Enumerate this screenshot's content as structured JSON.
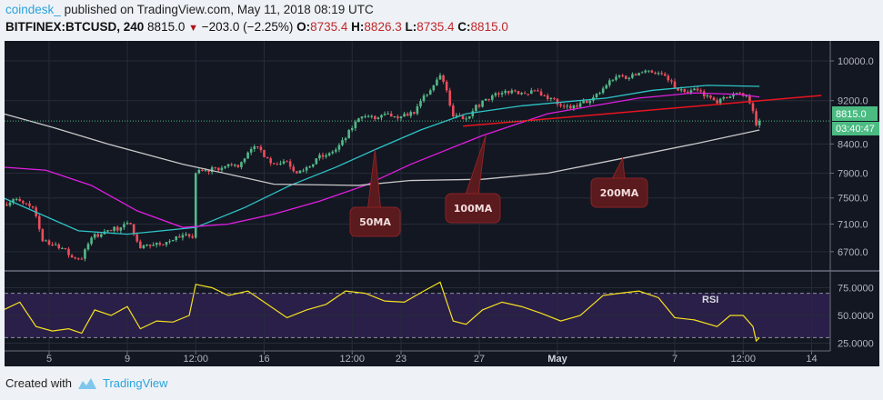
{
  "header": {
    "user": "coindesk_",
    "published": "published on TradingView.com, May 11, 2018 08:19 UTC",
    "symbol": "BITFINEX:BTCUSD, 240",
    "last": "8815.0",
    "change": "−203.0 (−2.25%)",
    "o_label": "O:",
    "o": "8735.4",
    "h_label": "H:",
    "h": "8826.3",
    "l_label": "L:",
    "l": "8735.4",
    "c_label": "C:",
    "c": "8815.0"
  },
  "footer": {
    "created_with": "Created with",
    "brand": "TradingView"
  },
  "colors": {
    "background": "#131722",
    "up": "#53b987",
    "down": "#eb4d5c",
    "ma50": "#2ec4c6",
    "ma100": "#e01ee0",
    "ma200": "#c8c8c8",
    "trendline": "#e8141e",
    "rsi": "#f5e020",
    "rsi_band": "#2a1f48",
    "price_label": "#4bbb82"
  },
  "chart_data": {
    "type": "candlestick",
    "interval": "240",
    "y_scale": "log",
    "price_ticks": [
      "10000.0",
      "9200.0",
      "8400.0",
      "7900.0",
      "7500.0",
      "7100.0",
      "6700.0"
    ],
    "x_ticks": [
      {
        "date": "2018-04-05T00:00",
        "label": "5"
      },
      {
        "date": "2018-04-09T00:00",
        "label": "9"
      },
      {
        "date": "2018-04-12T12:00",
        "label": "12:00"
      },
      {
        "date": "2018-04-16T00:00",
        "label": "16"
      },
      {
        "date": "2018-04-20T12:00",
        "label": "12:00"
      },
      {
        "date": "2018-04-23T00:00",
        "label": "23"
      },
      {
        "date": "2018-04-27T00:00",
        "label": "27"
      },
      {
        "date": "2018-05-01T00:00",
        "label": "May"
      },
      {
        "date": "2018-05-07T00:00",
        "label": "7"
      },
      {
        "date": "2018-05-10T12:00",
        "label": "12:00"
      },
      {
        "date": "2018-05-14T00:00",
        "label": "14"
      }
    ],
    "last_price_label": "8815.0",
    "countdown": "03:40:47",
    "closes": [
      [
        "2018-04-02T16:00",
        7400
      ],
      [
        "2018-04-03T04:00",
        7480
      ],
      [
        "2018-04-03T16:00",
        7420
      ],
      [
        "2018-04-04T04:00",
        7350
      ],
      [
        "2018-04-04T16:00",
        6850
      ],
      [
        "2018-04-05T04:00",
        6800
      ],
      [
        "2018-04-05T16:00",
        6750
      ],
      [
        "2018-04-06T04:00",
        6620
      ],
      [
        "2018-04-06T16:00",
        6600
      ],
      [
        "2018-04-07T04:00",
        6900
      ],
      [
        "2018-04-07T16:00",
        6950
      ],
      [
        "2018-04-08T04:00",
        7000
      ],
      [
        "2018-04-08T16:00",
        7050
      ],
      [
        "2018-04-09T04:00",
        7100
      ],
      [
        "2018-04-09T16:00",
        6750
      ],
      [
        "2018-04-10T04:00",
        6780
      ],
      [
        "2018-04-10T16:00",
        6800
      ],
      [
        "2018-04-11T04:00",
        6850
      ],
      [
        "2018-04-11T16:00",
        6900
      ],
      [
        "2018-04-12T04:00",
        6920
      ],
      [
        "2018-04-12T08:00",
        6900
      ],
      [
        "2018-04-12T12:00",
        7900
      ],
      [
        "2018-04-13T00:00",
        7950
      ],
      [
        "2018-04-13T16:00",
        7950
      ],
      [
        "2018-04-14T04:00",
        8050
      ],
      [
        "2018-04-14T16:00",
        8000
      ],
      [
        "2018-04-15T04:00",
        8250
      ],
      [
        "2018-04-15T16:00",
        8350
      ],
      [
        "2018-04-16T04:00",
        8150
      ],
      [
        "2018-04-16T16:00",
        8050
      ],
      [
        "2018-04-17T04:00",
        8100
      ],
      [
        "2018-04-17T16:00",
        7900
      ],
      [
        "2018-04-18T04:00",
        8000
      ],
      [
        "2018-04-18T16:00",
        8150
      ],
      [
        "2018-04-19T04:00",
        8200
      ],
      [
        "2018-04-19T16:00",
        8300
      ],
      [
        "2018-04-20T04:00",
        8500
      ],
      [
        "2018-04-20T16:00",
        8800
      ],
      [
        "2018-04-21T04:00",
        8900
      ],
      [
        "2018-04-21T16:00",
        8850
      ],
      [
        "2018-04-22T04:00",
        8950
      ],
      [
        "2018-04-22T16:00",
        8900
      ],
      [
        "2018-04-23T04:00",
        8950
      ],
      [
        "2018-04-23T16:00",
        8950
      ],
      [
        "2018-04-24T04:00",
        9300
      ],
      [
        "2018-04-24T16:00",
        9500
      ],
      [
        "2018-04-25T00:00",
        9700
      ],
      [
        "2018-04-25T08:00",
        9400
      ],
      [
        "2018-04-25T16:00",
        8900
      ],
      [
        "2018-04-26T04:00",
        8850
      ],
      [
        "2018-04-26T16:00",
        9000
      ],
      [
        "2018-04-27T04:00",
        9200
      ],
      [
        "2018-04-27T16:00",
        9300
      ],
      [
        "2018-04-28T04:00",
        9350
      ],
      [
        "2018-04-28T16:00",
        9400
      ],
      [
        "2018-04-29T04:00",
        9350
      ],
      [
        "2018-04-29T16:00",
        9400
      ],
      [
        "2018-04-30T04:00",
        9300
      ],
      [
        "2018-04-30T16:00",
        9250
      ],
      [
        "2018-05-01T04:00",
        9100
      ],
      [
        "2018-05-01T16:00",
        9050
      ],
      [
        "2018-05-02T04:00",
        9150
      ],
      [
        "2018-05-02T16:00",
        9200
      ],
      [
        "2018-05-03T04:00",
        9350
      ],
      [
        "2018-05-03T16:00",
        9600
      ],
      [
        "2018-05-04T04:00",
        9700
      ],
      [
        "2018-05-04T16:00",
        9650
      ],
      [
        "2018-05-05T04:00",
        9750
      ],
      [
        "2018-05-05T16:00",
        9800
      ],
      [
        "2018-05-06T04:00",
        9750
      ],
      [
        "2018-05-06T16:00",
        9600
      ],
      [
        "2018-05-07T04:00",
        9400
      ],
      [
        "2018-05-07T16:00",
        9350
      ],
      [
        "2018-05-08T04:00",
        9400
      ],
      [
        "2018-05-08T16:00",
        9300
      ],
      [
        "2018-05-09T04:00",
        9150
      ],
      [
        "2018-05-09T16:00",
        9250
      ],
      [
        "2018-05-10T04:00",
        9350
      ],
      [
        "2018-05-10T16:00",
        9300
      ],
      [
        "2018-05-11T00:00",
        9000
      ],
      [
        "2018-05-11T04:00",
        8735.4
      ],
      [
        "2018-05-11T08:00",
        8815
      ]
    ],
    "moving_averages": [
      {
        "name": "50MA",
        "color_key": "ma50",
        "points": [
          [
            "2018-04-02T16:00",
            7500
          ],
          [
            "2018-04-06T12:00",
            7000
          ],
          [
            "2018-04-09T00:00",
            6950
          ],
          [
            "2018-04-12T12:00",
            7050
          ],
          [
            "2018-04-15T00:00",
            7350
          ],
          [
            "2018-04-17T08:00",
            7700
          ],
          [
            "2018-04-19T16:00",
            8000
          ],
          [
            "2018-04-21T16:00",
            8300
          ],
          [
            "2018-04-24T00:00",
            8650
          ],
          [
            "2018-04-26T08:00",
            8950
          ],
          [
            "2018-04-29T04:00",
            9100
          ],
          [
            "2018-05-03T12:00",
            9250
          ],
          [
            "2018-05-05T20:00",
            9400
          ],
          [
            "2018-05-08T16:00",
            9500
          ],
          [
            "2018-05-11T08:00",
            9480
          ]
        ]
      },
      {
        "name": "100MA",
        "color_key": "ma100",
        "points": [
          [
            "2018-04-02T16:00",
            8000
          ],
          [
            "2018-04-04T20:00",
            7950
          ],
          [
            "2018-04-07T04:00",
            7700
          ],
          [
            "2018-04-09T12:00",
            7300
          ],
          [
            "2018-04-11T20:00",
            7050
          ],
          [
            "2018-04-14T04:00",
            7100
          ],
          [
            "2018-04-16T12:00",
            7250
          ],
          [
            "2018-04-18T20:00",
            7450
          ],
          [
            "2018-04-21T04:00",
            7700
          ],
          [
            "2018-04-23T12:00",
            8050
          ],
          [
            "2018-04-27T04:00",
            8550
          ],
          [
            "2018-04-30T12:00",
            8950
          ],
          [
            "2018-05-02T20:00",
            9100
          ],
          [
            "2018-05-05T04:00",
            9250
          ],
          [
            "2018-05-08T00:00",
            9350
          ],
          [
            "2018-05-10T08:00",
            9320
          ],
          [
            "2018-05-11T08:00",
            9270
          ]
        ]
      },
      {
        "name": "200MA",
        "color_key": "ma200",
        "points": [
          [
            "2018-04-02T16:00",
            8950
          ],
          [
            "2018-04-05T04:00",
            8700
          ],
          [
            "2018-04-08T00:00",
            8400
          ],
          [
            "2018-04-11T20:00",
            8050
          ],
          [
            "2018-04-14T16:00",
            7850
          ],
          [
            "2018-04-16T12:00",
            7720
          ],
          [
            "2018-04-20T20:00",
            7700
          ],
          [
            "2018-04-23T12:00",
            7780
          ],
          [
            "2018-04-27T04:00",
            7800
          ],
          [
            "2018-04-30T12:00",
            7900
          ],
          [
            "2018-05-04T08:00",
            8150
          ],
          [
            "2018-05-08T00:00",
            8400
          ],
          [
            "2018-05-11T08:00",
            8650
          ]
        ]
      }
    ],
    "trendline": [
      [
        "2018-04-26T04:00",
        8720
      ],
      [
        "2018-05-14T12:00",
        9300
      ]
    ],
    "annotations": [
      {
        "text": "50MA",
        "target": [
          "2018-04-21T16:00",
          8300
        ]
      },
      {
        "text": "100MA",
        "target": [
          "2018-04-27T08:00",
          8550
        ]
      },
      {
        "text": "200MA",
        "target": [
          "2018-05-04T08:00",
          8150
        ]
      }
    ],
    "rsi": {
      "label": "RSI",
      "ticks": [
        "75.0000",
        "50.0000",
        "25.0000"
      ],
      "bands": [
        70,
        30
      ],
      "values": [
        [
          "2018-04-02T16:00",
          55
        ],
        [
          "2018-04-03T12:00",
          62
        ],
        [
          "2018-04-04T08:00",
          40
        ],
        [
          "2018-04-05T04:00",
          36
        ],
        [
          "2018-04-06T00:00",
          38
        ],
        [
          "2018-04-06T16:00",
          34
        ],
        [
          "2018-04-07T08:00",
          55
        ],
        [
          "2018-04-08T04:00",
          50
        ],
        [
          "2018-04-09T00:00",
          58
        ],
        [
          "2018-04-09T16:00",
          38
        ],
        [
          "2018-04-10T12:00",
          45
        ],
        [
          "2018-04-11T08:00",
          44
        ],
        [
          "2018-04-12T04:00",
          50
        ],
        [
          "2018-04-12T12:00",
          78
        ],
        [
          "2018-04-13T08:00",
          75
        ],
        [
          "2018-04-14T04:00",
          68
        ],
        [
          "2018-04-15T04:00",
          72
        ],
        [
          "2018-04-16T04:00",
          60
        ],
        [
          "2018-04-17T04:00",
          48
        ],
        [
          "2018-04-18T04:00",
          55
        ],
        [
          "2018-04-19T04:00",
          60
        ],
        [
          "2018-04-20T04:00",
          72
        ],
        [
          "2018-04-21T04:00",
          70
        ],
        [
          "2018-04-22T04:00",
          63
        ],
        [
          "2018-04-23T04:00",
          62
        ],
        [
          "2018-04-24T04:00",
          72
        ],
        [
          "2018-04-25T00:00",
          80
        ],
        [
          "2018-04-25T16:00",
          45
        ],
        [
          "2018-04-26T08:00",
          42
        ],
        [
          "2018-04-27T04:00",
          55
        ],
        [
          "2018-04-28T04:00",
          62
        ],
        [
          "2018-04-29T04:00",
          58
        ],
        [
          "2018-04-30T04:00",
          52
        ],
        [
          "2018-05-01T04:00",
          45
        ],
        [
          "2018-05-02T04:00",
          50
        ],
        [
          "2018-05-03T08:00",
          68
        ],
        [
          "2018-05-04T04:00",
          70
        ],
        [
          "2018-05-05T04:00",
          72
        ],
        [
          "2018-05-06T04:00",
          66
        ],
        [
          "2018-05-07T00:00",
          48
        ],
        [
          "2018-05-08T00:00",
          46
        ],
        [
          "2018-05-09T04:00",
          40
        ],
        [
          "2018-05-09T20:00",
          50
        ],
        [
          "2018-05-10T12:00",
          50
        ],
        [
          "2018-05-11T00:00",
          40
        ],
        [
          "2018-05-11T04:00",
          27
        ],
        [
          "2018-05-11T08:00",
          30
        ]
      ]
    }
  }
}
